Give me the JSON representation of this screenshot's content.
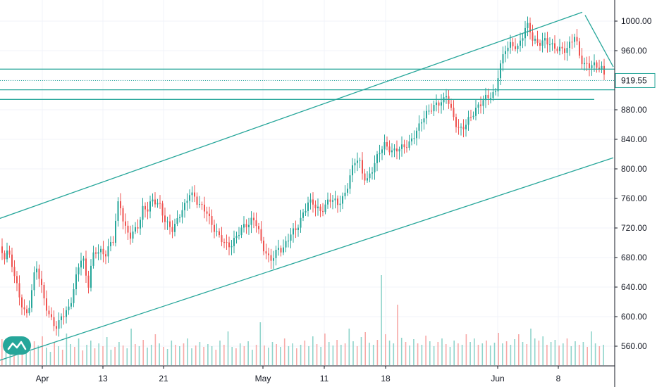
{
  "chart_data": {
    "type": "candlestick",
    "title": "",
    "xlabel": "",
    "ylabel": "",
    "ylim": [
      518,
      1026
    ],
    "grid": true,
    "x_ticks": [
      "Apr",
      "13",
      "21",
      "May",
      "11",
      "18",
      "Jun",
      "8"
    ],
    "y_ticks": [
      "1000.00",
      "960.00",
      "920.00",
      "880.00",
      "840.00",
      "800.00",
      "760.00",
      "720.00",
      "680.00",
      "640.00",
      "600.00",
      "560.00"
    ],
    "last_price": "919.55",
    "colors": {
      "up": "#26a69a",
      "down": "#ef5350",
      "line": "#26a69a",
      "grid": "#f0f3fa"
    },
    "price_close_path": [
      [
        0,
        695
      ],
      [
        4,
        676
      ],
      [
        8,
        690
      ],
      [
        14,
        672
      ],
      [
        20,
        650
      ],
      [
        26,
        622
      ],
      [
        32,
        608
      ],
      [
        38,
        600
      ],
      [
        44,
        640
      ],
      [
        50,
        675
      ],
      [
        56,
        655
      ],
      [
        62,
        625
      ],
      [
        68,
        605
      ],
      [
        74,
        590
      ],
      [
        80,
        580
      ],
      [
        86,
        595
      ],
      [
        92,
        600
      ],
      [
        98,
        610
      ],
      [
        104,
        640
      ],
      [
        110,
        670
      ],
      [
        116,
        690
      ],
      [
        120,
        665
      ],
      [
        124,
        645
      ],
      [
        130,
        685
      ],
      [
        136,
        690
      ],
      [
        142,
        685
      ],
      [
        148,
        678
      ],
      [
        154,
        690
      ],
      [
        160,
        700
      ],
      [
        164,
        735
      ],
      [
        168,
        760
      ],
      [
        172,
        738
      ],
      [
        178,
        720
      ],
      [
        184,
        715
      ],
      [
        190,
        722
      ],
      [
        196,
        728
      ],
      [
        202,
        748
      ],
      [
        208,
        742
      ],
      [
        214,
        752
      ],
      [
        220,
        750
      ],
      [
        226,
        745
      ],
      [
        232,
        730
      ],
      [
        238,
        724
      ],
      [
        244,
        722
      ],
      [
        250,
        735
      ],
      [
        256,
        748
      ],
      [
        262,
        755
      ],
      [
        268,
        768
      ],
      [
        274,
        760
      ],
      [
        280,
        748
      ],
      [
        286,
        742
      ],
      [
        292,
        738
      ],
      [
        298,
        725
      ],
      [
        304,
        718
      ],
      [
        310,
        712
      ],
      [
        316,
        708
      ],
      [
        322,
        700
      ],
      [
        328,
        702
      ],
      [
        334,
        708
      ],
      [
        340,
        715
      ],
      [
        346,
        718
      ],
      [
        352,
        720
      ],
      [
        358,
        728
      ],
      [
        364,
        722
      ],
      [
        370,
        700
      ],
      [
        376,
        690
      ],
      [
        382,
        682
      ],
      [
        388,
        688
      ],
      [
        394,
        696
      ],
      [
        400,
        690
      ],
      [
        406,
        700
      ],
      [
        412,
        708
      ],
      [
        418,
        712
      ],
      [
        424,
        722
      ],
      [
        430,
        740
      ],
      [
        436,
        755
      ],
      [
        442,
        760
      ],
      [
        448,
        752
      ],
      [
        454,
        748
      ],
      [
        460,
        752
      ],
      [
        466,
        760
      ],
      [
        472,
        755
      ],
      [
        478,
        748
      ],
      [
        484,
        752
      ],
      [
        490,
        765
      ],
      [
        496,
        790
      ],
      [
        502,
        812
      ],
      [
        508,
        818
      ],
      [
        514,
        796
      ],
      [
        520,
        790
      ],
      [
        526,
        800
      ],
      [
        532,
        812
      ],
      [
        538,
        822
      ],
      [
        544,
        828
      ],
      [
        550,
        822
      ],
      [
        556,
        818
      ],
      [
        562,
        825
      ],
      [
        568,
        830
      ],
      [
        574,
        835
      ],
      [
        580,
        840
      ],
      [
        586,
        850
      ],
      [
        592,
        858
      ],
      [
        598,
        868
      ],
      [
        604,
        872
      ],
      [
        610,
        876
      ],
      [
        616,
        880
      ],
      [
        622,
        885
      ],
      [
        628,
        890
      ],
      [
        632,
        900
      ],
      [
        636,
        892
      ],
      [
        640,
        880
      ],
      [
        644,
        870
      ],
      [
        648,
        862
      ],
      [
        652,
        858
      ],
      [
        656,
        860
      ],
      [
        662,
        866
      ],
      [
        668,
        870
      ],
      [
        674,
        876
      ],
      [
        680,
        882
      ],
      [
        686,
        890
      ],
      [
        692,
        895
      ],
      [
        698,
        900
      ],
      [
        703,
        908
      ],
      [
        706,
        935
      ],
      [
        710,
        950
      ],
      [
        716,
        968
      ],
      [
        722,
        972
      ],
      [
        728,
        968
      ],
      [
        734,
        962
      ],
      [
        740,
        975
      ],
      [
        746,
        990
      ],
      [
        750,
        985
      ],
      [
        754,
        972
      ],
      [
        760,
        968
      ],
      [
        766,
        972
      ],
      [
        772,
        978
      ],
      [
        778,
        976
      ],
      [
        784,
        970
      ],
      [
        790,
        966
      ],
      [
        796,
        962
      ],
      [
        802,
        958
      ],
      [
        808,
        965
      ],
      [
        814,
        975
      ],
      [
        818,
        962
      ],
      [
        822,
        945
      ],
      [
        828,
        940
      ],
      [
        834,
        942
      ],
      [
        840,
        946
      ],
      [
        846,
        944
      ],
      [
        852,
        942
      ],
      [
        856,
        930
      ],
      [
        859,
        919.55
      ]
    ],
    "levels": {
      "resistance_upper": 935,
      "reference_dotted": 919.55,
      "support_1": 907,
      "support_2": 894
    },
    "channel": {
      "upper": {
        "from": [
          0,
          733
        ],
        "to": [
          826,
          1012
        ]
      },
      "lower": {
        "from": [
          0,
          541
        ],
        "to": [
          870,
          815
        ]
      }
    },
    "trend_segment": {
      "from": [
        830,
        1008
      ],
      "to": [
        870,
        938
      ]
    },
    "volume": [
      37,
      24,
      18,
      29,
      22,
      31,
      26,
      20,
      34,
      28,
      41,
      25,
      19,
      33,
      27,
      22,
      45,
      30,
      26,
      38,
      21,
      29,
      35,
      24,
      31,
      27,
      40,
      22,
      26,
      33,
      28,
      24,
      52,
      30,
      27,
      36,
      25,
      29,
      44,
      31,
      26,
      23,
      35,
      29,
      27,
      31,
      38,
      24,
      28,
      33,
      26,
      30,
      27,
      22,
      35,
      29,
      48,
      26,
      24,
      31,
      27,
      34,
      22,
      29,
      61,
      28,
      25,
      33,
      30,
      26,
      38,
      27,
      31,
      24,
      29,
      35,
      27,
      41,
      30,
      26,
      45,
      33,
      28,
      36,
      29,
      31,
      52,
      34,
      27,
      40,
      47,
      32,
      29,
      36,
      128,
      44,
      35,
      31,
      86,
      39,
      33,
      28,
      37,
      31,
      29,
      42,
      34,
      27,
      33,
      38,
      30,
      26,
      35,
      31,
      29,
      44,
      33,
      38,
      29,
      31,
      35,
      28,
      32,
      46,
      31,
      34,
      29,
      37,
      44,
      33,
      30,
      52,
      38,
      35,
      41,
      29,
      33,
      36,
      28,
      31,
      38,
      27,
      34,
      29,
      33,
      26,
      48,
      31,
      27,
      29
    ]
  }
}
